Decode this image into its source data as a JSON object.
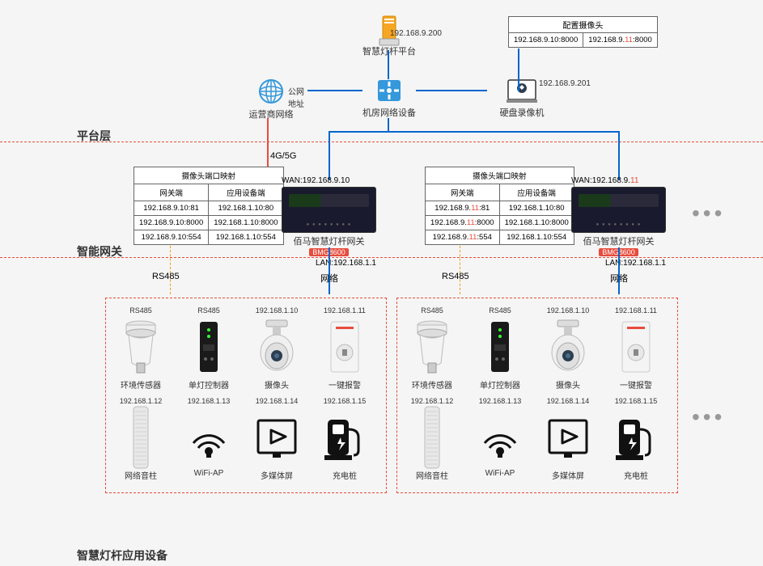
{
  "layers": {
    "platform": "平台层",
    "gateway": "智能网关",
    "app": "智慧灯杆应用设备"
  },
  "top": {
    "server": {
      "label": "智慧灯杆平台",
      "ip": "192.168.9.200"
    },
    "switch": {
      "label": "机房网络设备"
    },
    "isp": {
      "label": "运营商网络",
      "note": "公网地址"
    },
    "nvr": {
      "label": "硬盘录像机",
      "ip": "192.168.9.201"
    },
    "cam_cfg": {
      "title": "配置摄像头",
      "c1": "192.168.9.10:8000",
      "c2_a": "192.168.9.",
      "c2_b": "11",
      "c2_c": ":8000"
    },
    "proto": "4G/5G"
  },
  "map1": {
    "title": "摄像头端口映射",
    "h1": "网关端",
    "h2": "应用设备端",
    "r": [
      [
        "192.168.9.10:81",
        "192.168.1.10:80"
      ],
      [
        "192.168.9.10:8000",
        "192.168.1.10:8000"
      ],
      [
        "192.168.9.10:554",
        "192.168.1.10:554"
      ]
    ]
  },
  "map2": {
    "title": "摄像头端口映射",
    "h1": "网关端",
    "h2": "应用设备端",
    "r": [
      [
        "192.168.9.",
        "11",
        ":81",
        "192.168.1.10:80"
      ],
      [
        "192.168.9.",
        "11",
        ":8000",
        "192.168.1.10:8000"
      ],
      [
        "192.168.9.",
        "11",
        ":554",
        "192.168.1.10:554"
      ]
    ]
  },
  "gw": {
    "name": "佰马智慧灯杆网关",
    "model": "BMG8600",
    "wan1": "WAN:192.168.9.10",
    "wan2_a": "WAN:192.168.9.",
    "wan2_b": "11",
    "lan": "LAN:192.168.1.1"
  },
  "conn": {
    "rs485": "RS485",
    "net": "网络"
  },
  "devs": {
    "row1": [
      {
        "name": "环境传感器",
        "ip": "RS485"
      },
      {
        "name": "单灯控制器",
        "ip": "RS485"
      },
      {
        "name": "摄像头",
        "ip": "192.168.1.10"
      },
      {
        "name": "一键报警",
        "ip": "192.168.1.11"
      }
    ],
    "row2": [
      {
        "name": "网络音柱",
        "ip": "192.168.1.12"
      },
      {
        "name": "WiFi-AP",
        "ip": "192.168.1.13"
      },
      {
        "name": "多媒体屏",
        "ip": "192.168.1.14"
      },
      {
        "name": "充电桩",
        "ip": "192.168.1.15"
      }
    ]
  },
  "style": {
    "accent": "#e74c3c",
    "blue": "#0066cc",
    "orange": "#f39c12"
  }
}
